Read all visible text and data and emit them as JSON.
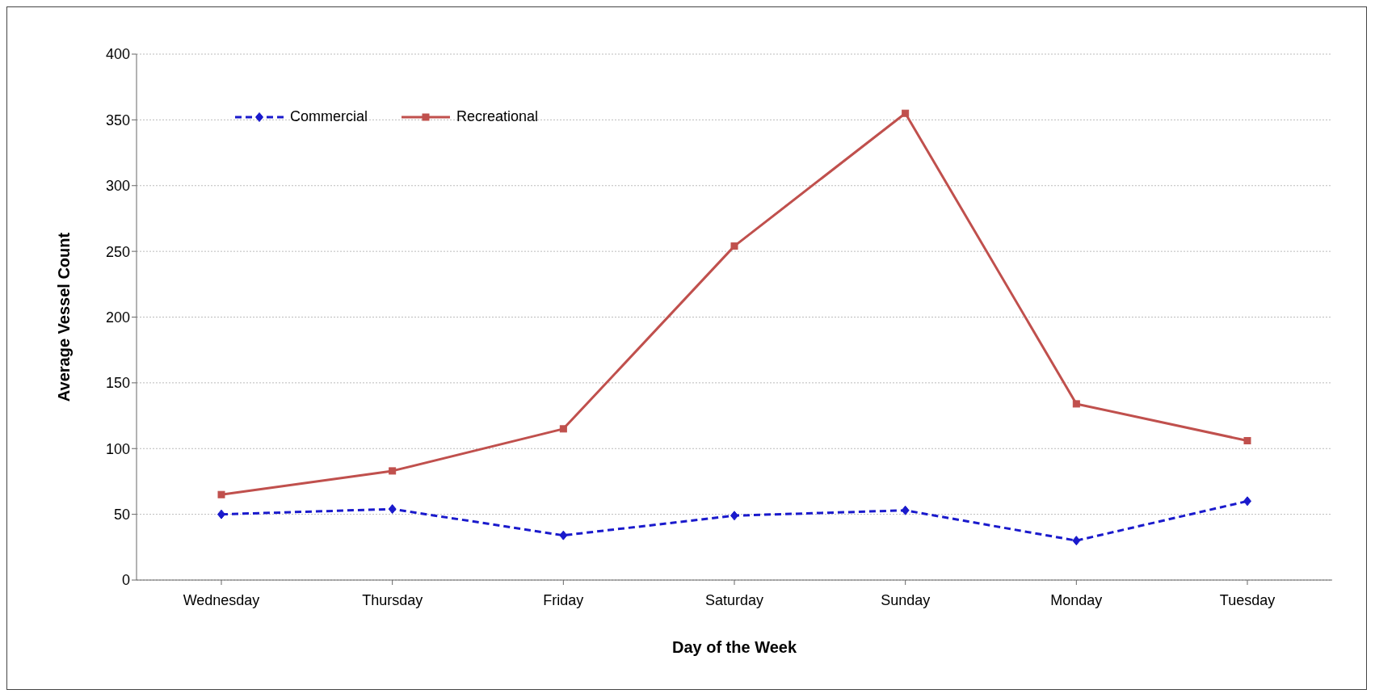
{
  "chart_data": {
    "type": "line",
    "xlabel": "Day of the Week",
    "ylabel": "Average Vessel Count",
    "categories": [
      "Wednesday",
      "Thursday",
      "Friday",
      "Saturday",
      "Sunday",
      "Monday",
      "Tuesday"
    ],
    "series": [
      {
        "name": "Commercial",
        "color": "#1a1acc",
        "values": [
          50,
          54,
          34,
          49,
          53,
          30,
          60
        ],
        "marker": "diamond",
        "line_style": "dashed"
      },
      {
        "name": "Recreational",
        "color": "#c0504d",
        "values": [
          65,
          83,
          115,
          254,
          355,
          134,
          106
        ],
        "marker": "square",
        "line_style": "solid"
      }
    ],
    "ylim": [
      0,
      400
    ],
    "yticks": [
      0,
      50,
      100,
      150,
      200,
      250,
      300,
      350,
      400
    ],
    "grid": "y",
    "legend": "top left"
  }
}
